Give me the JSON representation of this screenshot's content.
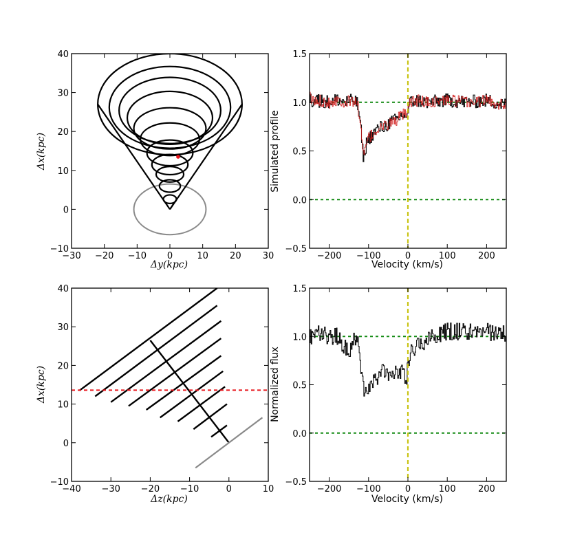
{
  "chart_data": [
    {
      "id": "top-left",
      "type": "line",
      "xlabel": "Δy(kpc)",
      "ylabel": "Δx(kpc)",
      "xlim": [
        -30,
        30
      ],
      "ylim": [
        -10,
        40
      ],
      "xticks": [
        -30,
        -20,
        -10,
        0,
        10,
        20,
        30
      ],
      "yticks": [
        -10,
        0,
        10,
        20,
        30,
        40
      ],
      "rings": [
        {
          "cx": 0,
          "cy": 27.0,
          "rx": 22.0,
          "ry": 13.0
        },
        {
          "cx": 0,
          "cy": 26.2,
          "rx": 18.5,
          "ry": 10.5
        },
        {
          "cx": 0,
          "cy": 25.4,
          "rx": 15.5,
          "ry": 8.5
        },
        {
          "cx": 0,
          "cy": 23.5,
          "rx": 13.0,
          "ry": 6.8
        },
        {
          "cx": 0,
          "cy": 20.8,
          "rx": 11.0,
          "ry": 5.3
        },
        {
          "cx": 0,
          "cy": 18.0,
          "rx": 9.0,
          "ry": 4.2
        },
        {
          "cx": 0,
          "cy": 14.5,
          "rx": 7.0,
          "ry": 3.3
        },
        {
          "cx": 0,
          "cy": 11.5,
          "rx": 5.5,
          "ry": 2.6
        },
        {
          "cx": 0,
          "cy": 9.0,
          "rx": 4.2,
          "ry": 2.0
        },
        {
          "cx": 0,
          "cy": 6.0,
          "rx": 3.2,
          "ry": 1.6
        },
        {
          "cx": 0,
          "cy": 2.6,
          "rx": 2.0,
          "ry": 1.1
        }
      ],
      "edges": [
        {
          "x": [
            0,
            -22
          ],
          "y": [
            0,
            27
          ]
        },
        {
          "x": [
            0,
            22
          ],
          "y": [
            0,
            27
          ]
        },
        {
          "x": [
            0,
            2
          ],
          "y": [
            0,
            2.5
          ]
        }
      ],
      "gray_ellipse": {
        "cx": 0,
        "cy": 0,
        "rx": 11,
        "ry": 6.5
      },
      "point": {
        "x": 2.5,
        "y": 13.5
      }
    },
    {
      "id": "top-right",
      "type": "line",
      "xlabel": "Velocity (km/s)",
      "ylabel": "Simulated profile",
      "xlim": [
        -250,
        250
      ],
      "ylim": [
        -0.5,
        1.5
      ],
      "xticks": [
        -200,
        -100,
        0,
        100,
        200
      ],
      "yticks": [
        -0.5,
        0.0,
        0.5,
        1.0,
        1.5
      ],
      "hlines": [
        1.0,
        0.0
      ],
      "vline": 0,
      "profile": [
        [
          -250,
          1.05
        ],
        [
          -240,
          1.0
        ],
        [
          -220,
          1.02
        ],
        [
          -200,
          1.0
        ],
        [
          -180,
          1.03
        ],
        [
          -160,
          1.0
        ],
        [
          -140,
          1.02
        ],
        [
          -130,
          0.99
        ],
        [
          -125,
          0.9
        ],
        [
          -120,
          0.7
        ],
        [
          -117,
          0.55
        ],
        [
          -113,
          0.42
        ],
        [
          -110,
          0.5
        ],
        [
          -105,
          0.6
        ],
        [
          -100,
          0.63
        ],
        [
          -90,
          0.67
        ],
        [
          -80,
          0.72
        ],
        [
          -70,
          0.74
        ],
        [
          -60,
          0.75
        ],
        [
          -50,
          0.78
        ],
        [
          -40,
          0.8
        ],
        [
          -30,
          0.82
        ],
        [
          -20,
          0.85
        ],
        [
          -10,
          0.88
        ],
        [
          -3,
          0.83
        ],
        [
          0,
          0.92
        ],
        [
          5,
          1.0
        ],
        [
          20,
          1.02
        ],
        [
          50,
          1.0
        ],
        [
          100,
          1.02
        ],
        [
          150,
          1.0
        ],
        [
          200,
          1.02
        ],
        [
          250,
          0.97
        ]
      ],
      "noise": 0.07
    },
    {
      "id": "bottom-left",
      "type": "line",
      "xlabel": "Δz(kpc)",
      "ylabel": "Δx(kpc)",
      "xlim": [
        -40,
        10
      ],
      "ylim": [
        -10,
        40
      ],
      "xticks": [
        -40,
        -30,
        -20,
        -10,
        0,
        10
      ],
      "yticks": [
        -10,
        0,
        10,
        20,
        30,
        40
      ],
      "segments": [
        {
          "x": [
            -38,
            -3
          ],
          "y": [
            13.5,
            40
          ]
        },
        {
          "x": [
            -34,
            -3
          ],
          "y": [
            12,
            35.5
          ]
        },
        {
          "x": [
            -30,
            -2
          ],
          "y": [
            10.5,
            31.5
          ]
        },
        {
          "x": [
            -25.5,
            -2
          ],
          "y": [
            9.5,
            27
          ]
        },
        {
          "x": [
            -21,
            -2
          ],
          "y": [
            8.5,
            22.5
          ]
        },
        {
          "x": [
            -17.5,
            -1.5
          ],
          "y": [
            6.5,
            18.5
          ]
        },
        {
          "x": [
            -13,
            -1
          ],
          "y": [
            5.5,
            14.5
          ]
        },
        {
          "x": [
            -9,
            -0.5
          ],
          "y": [
            3.5,
            10
          ]
        },
        {
          "x": [
            -4.5,
            -0.5
          ],
          "y": [
            1.5,
            4.5
          ]
        },
        {
          "x": [
            -20,
            0
          ],
          "y": [
            26.5,
            0
          ]
        }
      ],
      "gray_line": {
        "x": [
          -8.5,
          8.5
        ],
        "y": [
          -6.5,
          6.5
        ]
      },
      "red_hline": 13.6
    },
    {
      "id": "bottom-right",
      "type": "line",
      "xlabel": "Velocity (km/s)",
      "ylabel": "Normalized flux",
      "xlim": [
        -250,
        250
      ],
      "ylim": [
        -0.5,
        1.5
      ],
      "xticks": [
        -200,
        -100,
        0,
        100,
        200
      ],
      "yticks": [
        -0.5,
        0.0,
        0.5,
        1.0,
        1.5
      ],
      "hlines": [
        1.0,
        0.0
      ],
      "vline": 0,
      "profile": [
        [
          -250,
          1.0
        ],
        [
          -230,
          1.05
        ],
        [
          -200,
          1.0
        ],
        [
          -180,
          1.0
        ],
        [
          -170,
          0.95
        ],
        [
          -160,
          0.88
        ],
        [
          -150,
          0.85
        ],
        [
          -140,
          0.95
        ],
        [
          -130,
          1.02
        ],
        [
          -125,
          0.9
        ],
        [
          -120,
          0.65
        ],
        [
          -115,
          0.5
        ],
        [
          -110,
          0.38
        ],
        [
          -105,
          0.45
        ],
        [
          -95,
          0.5
        ],
        [
          -85,
          0.6
        ],
        [
          -75,
          0.58
        ],
        [
          -65,
          0.62
        ],
        [
          -55,
          0.65
        ],
        [
          -45,
          0.6
        ],
        [
          -35,
          0.65
        ],
        [
          -25,
          0.62
        ],
        [
          -15,
          0.68
        ],
        [
          -5,
          0.55
        ],
        [
          0,
          0.75
        ],
        [
          5,
          0.82
        ],
        [
          20,
          0.9
        ],
        [
          40,
          0.95
        ],
        [
          60,
          1.0
        ],
        [
          100,
          1.05
        ],
        [
          150,
          1.05
        ],
        [
          200,
          1.05
        ],
        [
          250,
          1.02
        ]
      ],
      "noise": 0.09
    }
  ]
}
